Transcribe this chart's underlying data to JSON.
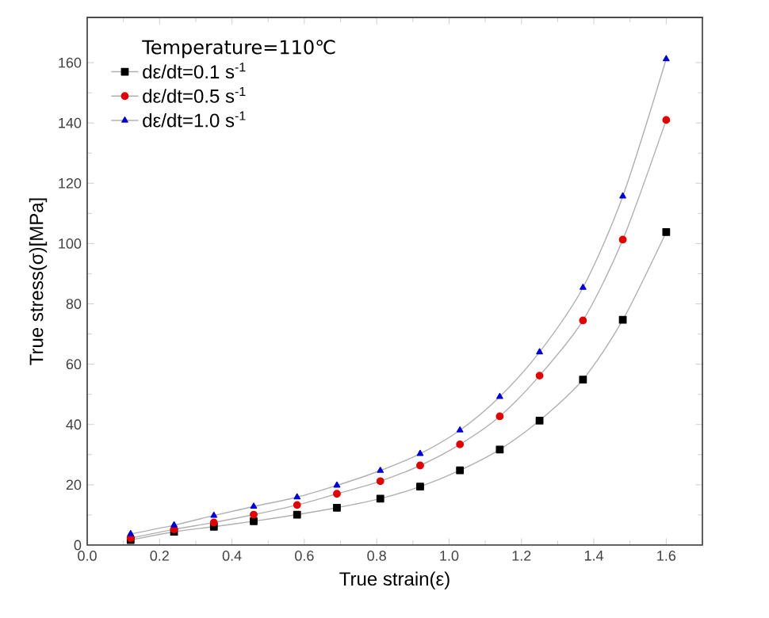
{
  "chart_data": {
    "type": "line",
    "xlabel": "True strain(ε)",
    "ylabel": "True stress(σ)[MPa]",
    "legend_title": "Temperature=110℃",
    "legend": "top left",
    "x": [
      0.12,
      0.24,
      0.35,
      0.46,
      0.58,
      0.69,
      0.81,
      0.92,
      1.03,
      1.14,
      1.25,
      1.37,
      1.48,
      1.6
    ],
    "series": [
      {
        "name": "dε/dt=0.1 s$^{-1}$",
        "color": "#000000",
        "marker": "square",
        "values": [
          1.7,
          4.4,
          6.1,
          7.9,
          10.1,
          12.4,
          15.4,
          19.4,
          24.8,
          31.7,
          41.3,
          54.9,
          74.7,
          103.8
        ]
      },
      {
        "name": "dε/dt=0.5 s$^{-1}$",
        "color": "#e00000",
        "marker": "circle",
        "values": [
          2.3,
          5.2,
          7.5,
          10.1,
          13.3,
          17.0,
          21.2,
          26.4,
          33.4,
          42.7,
          56.2,
          74.5,
          101.3,
          141.0
        ]
      },
      {
        "name": "dε/dt=1.0 s$^{-1}$",
        "color": "#0000d0",
        "marker": "triangle",
        "values": [
          3.7,
          6.6,
          9.8,
          12.8,
          15.9,
          19.8,
          24.7,
          30.3,
          38.1,
          49.2,
          64.0,
          85.4,
          115.7,
          161.2
        ]
      }
    ],
    "xlim": [
      0,
      1.7
    ],
    "ylim": [
      0,
      175
    ],
    "xticks": [
      {
        "value": 0,
        "label": "0.0"
      },
      {
        "value": 0.2,
        "label": "0.2"
      },
      {
        "value": 0.4,
        "label": "0.4"
      },
      {
        "value": 0.6,
        "label": "0.6"
      },
      {
        "value": 0.8,
        "label": "0.8"
      },
      {
        "value": 1.0,
        "label": "1.0"
      },
      {
        "value": 1.2,
        "label": "1.2"
      },
      {
        "value": 1.4,
        "label": "1.4"
      },
      {
        "value": 1.6,
        "label": "1.6"
      }
    ],
    "yticks": [
      0,
      20,
      40,
      60,
      80,
      100,
      120,
      140,
      160
    ]
  }
}
